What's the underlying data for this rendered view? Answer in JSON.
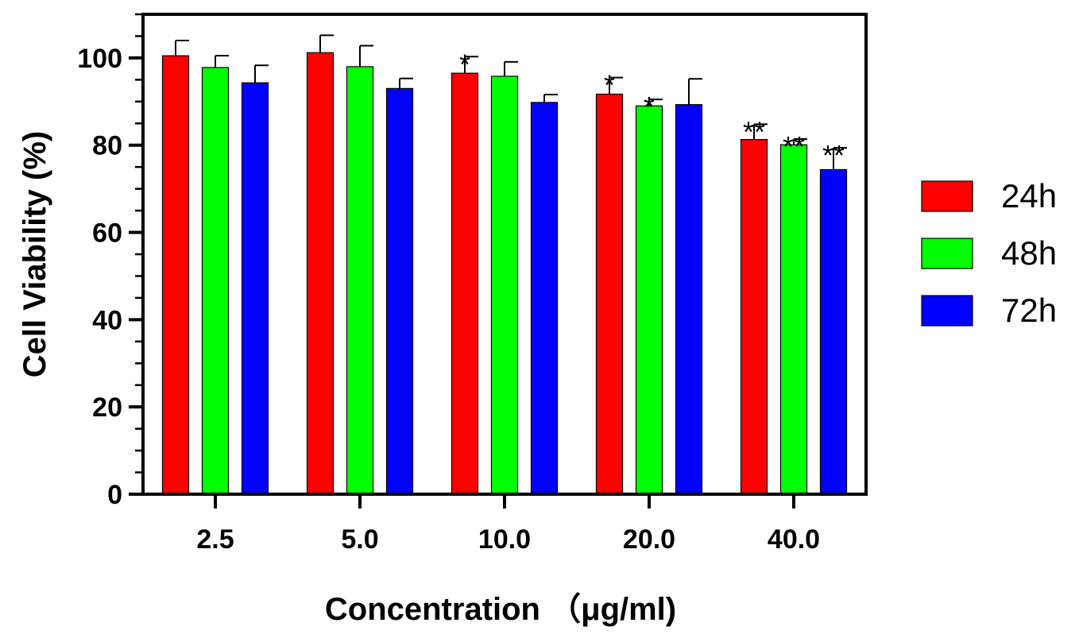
{
  "chart_data": {
    "type": "bar",
    "title": "",
    "xlabel": "Concentration （μg/ml)",
    "ylabel": "Cell Viability (%)",
    "categories": [
      "2.5",
      "5.0",
      "10.0",
      "20.0",
      "40.0"
    ],
    "ylim": [
      0,
      110
    ],
    "yticks": [
      0,
      20,
      40,
      60,
      80,
      100
    ],
    "y_tick_labels": [
      "0",
      "20",
      "40",
      "60",
      "80",
      "100"
    ],
    "grid": false,
    "legend_position": "right",
    "series": [
      {
        "name": "24h",
        "color": "#ff0000",
        "values": [
          100.5,
          101.2,
          96.5,
          91.7,
          81.3
        ],
        "errors": [
          3.5,
          4.0,
          3.8,
          3.8,
          3.5
        ],
        "significance": [
          "",
          "",
          "*",
          "*",
          "**"
        ]
      },
      {
        "name": "48h",
        "color": "#00ff00",
        "values": [
          97.8,
          98.0,
          95.8,
          89.0,
          80.1
        ],
        "errors": [
          2.7,
          4.8,
          3.3,
          1.5,
          1.3
        ],
        "significance": [
          "",
          "",
          "",
          "*",
          "**"
        ]
      },
      {
        "name": "72h",
        "color": "#0000ff",
        "values": [
          94.3,
          93.0,
          89.8,
          89.3,
          74.4
        ],
        "errors": [
          4.0,
          2.3,
          1.8,
          5.9,
          5.0
        ],
        "significance": [
          "",
          "",
          "",
          "",
          "**"
        ]
      }
    ]
  }
}
